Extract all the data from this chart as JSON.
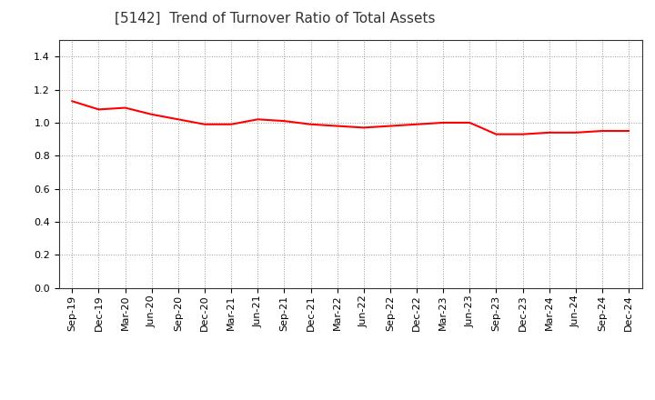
{
  "title": "[5142]  Trend of Turnover Ratio of Total Assets",
  "x_labels": [
    "Sep-19",
    "Dec-19",
    "Mar-20",
    "Jun-20",
    "Sep-20",
    "Dec-20",
    "Mar-21",
    "Jun-21",
    "Sep-21",
    "Dec-21",
    "Mar-22",
    "Jun-22",
    "Sep-22",
    "Dec-22",
    "Mar-23",
    "Jun-23",
    "Sep-23",
    "Dec-23",
    "Mar-24",
    "Jun-24",
    "Sep-24",
    "Dec-24"
  ],
  "y_values": [
    1.13,
    1.08,
    1.09,
    1.05,
    1.02,
    0.99,
    0.99,
    1.02,
    1.01,
    0.99,
    0.98,
    0.97,
    0.98,
    0.99,
    1.0,
    1.0,
    0.93,
    0.93,
    0.94,
    0.94,
    0.95,
    0.95
  ],
  "line_color": "#FF0000",
  "line_width": 1.5,
  "ylim": [
    0.0,
    1.5
  ],
  "yticks": [
    0.0,
    0.2,
    0.4,
    0.6,
    0.8,
    1.0,
    1.2,
    1.4
  ],
  "background_color": "#ffffff",
  "plot_bg_color": "#ffffff",
  "grid_color": "#999999",
  "title_fontsize": 11,
  "tick_fontsize": 8
}
